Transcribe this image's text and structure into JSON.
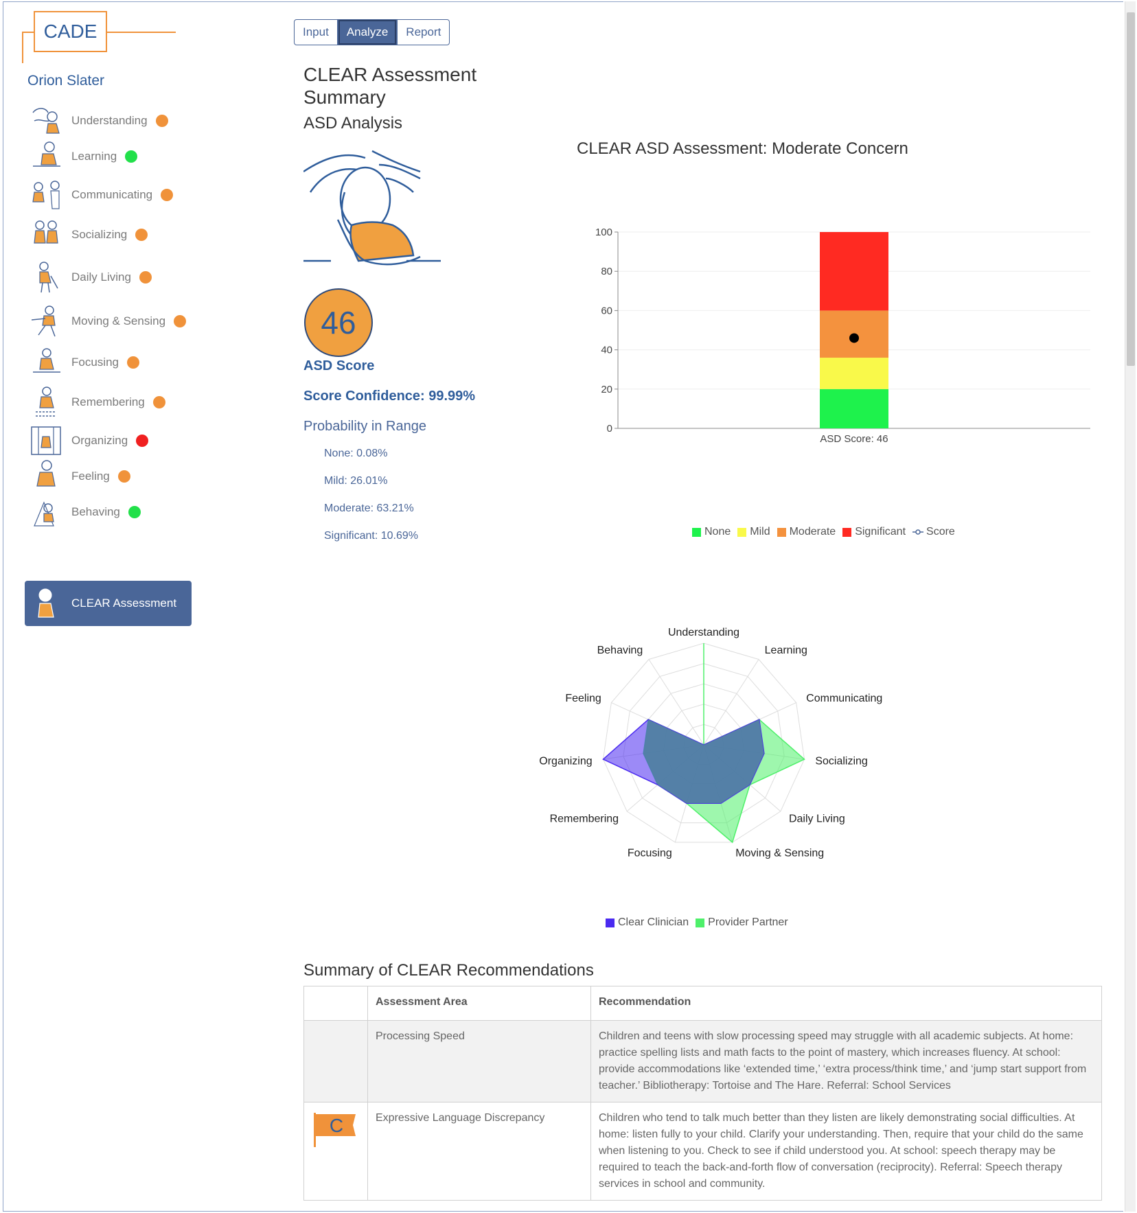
{
  "logo": {
    "text": "CADE"
  },
  "patient": {
    "name": "Orion Slater"
  },
  "nav": {
    "items": [
      {
        "label": "Understanding",
        "status_color": "#f0923a"
      },
      {
        "label": "Learning",
        "status_color": "#22e04a"
      },
      {
        "label": "Communicating",
        "status_color": "#f0923a"
      },
      {
        "label": "Socializing",
        "status_color": "#f0923a"
      },
      {
        "label": "Daily Living",
        "status_color": "#f0923a"
      },
      {
        "label": "Moving & Sensing",
        "status_color": "#f0923a"
      },
      {
        "label": "Focusing",
        "status_color": "#f0923a"
      },
      {
        "label": "Remembering",
        "status_color": "#f0923a"
      },
      {
        "label": "Organizing",
        "status_color": "#f02020"
      },
      {
        "label": "Feeling",
        "status_color": "#f0923a"
      },
      {
        "label": "Behaving",
        "status_color": "#22e04a"
      }
    ],
    "active": {
      "label": "CLEAR Assessment"
    }
  },
  "tabs": [
    {
      "label": "Input"
    },
    {
      "label": "Analyze",
      "active": true
    },
    {
      "label": "Report"
    }
  ],
  "summary": {
    "title": "CLEAR Assessment Summary",
    "subtitle": "ASD Analysis",
    "score": "46",
    "score_label": "ASD Score",
    "confidence": "Score Confidence: 99.99%",
    "prob_title": "Probability in Range",
    "probabilities": [
      "None: 0.08%",
      "Mild: 26.01%",
      "Moderate: 63.21%",
      "Significant: 10.69%"
    ]
  },
  "chart_data": [
    {
      "type": "bar",
      "title": "CLEAR ASD Assessment: Moderate Concern",
      "categories": [
        "ASD Score: 46"
      ],
      "stacked": true,
      "ylim": [
        0,
        100
      ],
      "yticks": [
        "0",
        "20",
        "40",
        "60",
        "80",
        "100"
      ],
      "series": [
        {
          "name": "None",
          "values": [
            20
          ],
          "color": "#1ef24c"
        },
        {
          "name": "Mild",
          "values": [
            16
          ],
          "color": "#f9f94a"
        },
        {
          "name": "Moderate",
          "values": [
            24
          ],
          "color": "#f4923e"
        },
        {
          "name": "Significant",
          "values": [
            40
          ],
          "color": "#ff2a22"
        }
      ],
      "score_point": {
        "name": "Score",
        "value": 46,
        "color": "#000000"
      },
      "grid": true,
      "legend": "bottom"
    },
    {
      "type": "radar",
      "axes": [
        "Understanding",
        "Learning",
        "Communicating",
        "Socializing",
        "Daily Living",
        "Moving & Sensing",
        "Focusing",
        "Remembering",
        "Organizing",
        "Feeling",
        "Behaving"
      ],
      "rmax": 5,
      "series": [
        {
          "name": "Clear Clinician",
          "values": [
            0,
            0,
            3,
            3,
            3,
            3,
            3,
            3,
            5,
            3,
            0
          ],
          "color": "#4a2af0"
        },
        {
          "name": "Provider Partner",
          "values": [
            5,
            0,
            3,
            5,
            3,
            5,
            3,
            3,
            3,
            3,
            0
          ],
          "color": "#4ef06a"
        }
      ],
      "legend": "bottom"
    }
  ],
  "recommendations": {
    "title": "Summary of CLEAR Recommendations",
    "headers": [
      "",
      "Assessment Area",
      "Recommendation"
    ],
    "rows": [
      {
        "flag": "",
        "area": "Processing Speed",
        "text": "Children and teens with slow processing speed may struggle with all academic subjects. At home: practice spelling lists and math facts to the point of mastery, which increases fluency. At school: provide accommodations like ‘extended time,’ ‘extra process/think time,’ and ‘jump start support from teacher.’ Bibliotherapy: Tortoise and The Hare. Referral: School Services"
      },
      {
        "flag": "C",
        "area": "Expressive Language Discrepancy",
        "text": "Children who tend to talk much better than they listen are likely demonstrating social difficulties. At home: listen fully to your child. Clarify your understanding. Then, require that your child do the same when listening to you. Check to see if child understood you. At school: speech therapy may be required to teach the back-and-forth flow of conversation (reciprocity). Referral: Speech therapy services in school and community."
      }
    ]
  }
}
